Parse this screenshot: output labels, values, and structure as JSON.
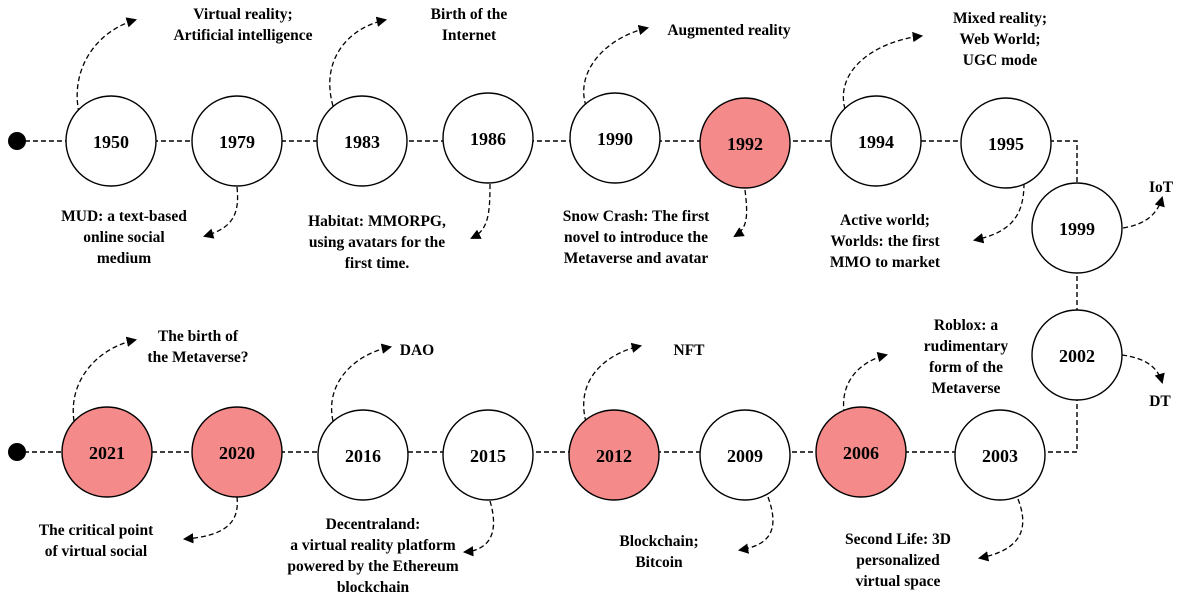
{
  "colors": {
    "highlight_fill": "#f48a8a",
    "default_fill": "#ffffff",
    "stroke": "#000000"
  },
  "nodes": [
    {
      "year": "1950",
      "highlight": false
    },
    {
      "year": "1979",
      "highlight": false
    },
    {
      "year": "1983",
      "highlight": false
    },
    {
      "year": "1986",
      "highlight": false
    },
    {
      "year": "1990",
      "highlight": false
    },
    {
      "year": "1992",
      "highlight": true
    },
    {
      "year": "1994",
      "highlight": false
    },
    {
      "year": "1995",
      "highlight": false
    },
    {
      "year": "1999",
      "highlight": false
    },
    {
      "year": "2002",
      "highlight": false
    },
    {
      "year": "2003",
      "highlight": false
    },
    {
      "year": "2006",
      "highlight": true
    },
    {
      "year": "2009",
      "highlight": false
    },
    {
      "year": "2012",
      "highlight": true
    },
    {
      "year": "2015",
      "highlight": false
    },
    {
      "year": "2016",
      "highlight": false
    },
    {
      "year": "2020",
      "highlight": true
    },
    {
      "year": "2021",
      "highlight": true
    }
  ],
  "annotations": [
    {
      "year": "1950",
      "lines": [
        "Virtual reality;",
        "Artificial intelligence"
      ]
    },
    {
      "year": "1979",
      "lines": [
        "MUD: a text-based",
        "online social",
        "medium"
      ]
    },
    {
      "year": "1983",
      "lines": [
        "Birth of the",
        "Internet"
      ]
    },
    {
      "year": "1986",
      "lines": [
        "Habitat: MMORPG,",
        "using avatars for the",
        "first time."
      ]
    },
    {
      "year": "1990",
      "lines": [
        "Augmented reality"
      ]
    },
    {
      "year": "1992",
      "lines": [
        "Snow Crash: The first",
        "novel to introduce the",
        "Metaverse and avatar"
      ]
    },
    {
      "year": "1994",
      "lines": [
        "Mixed reality;",
        "Web World;",
        "UGC mode"
      ]
    },
    {
      "year": "1995",
      "lines": [
        "Active world;",
        "Worlds: the first",
        "MMO to market"
      ]
    },
    {
      "year": "1999",
      "lines": [
        "IoT"
      ]
    },
    {
      "year": "2002",
      "lines": [
        "DT"
      ]
    },
    {
      "year": "2003",
      "lines": [
        "Second Life: 3D",
        "personalized",
        "virtual space"
      ]
    },
    {
      "year": "2006",
      "lines": [
        "Roblox: a",
        "rudimentary",
        "form of the",
        "Metaverse"
      ]
    },
    {
      "year": "2009",
      "lines": [
        "Blockchain;",
        "Bitcoin"
      ]
    },
    {
      "year": "2012",
      "lines": [
        "NFT"
      ]
    },
    {
      "year": "2016",
      "lines": [
        "DAO"
      ]
    },
    {
      "year": "2015",
      "lines": [
        "Decentraland:",
        "a virtual reality platform",
        "powered by the Ethereum",
        "blockchain"
      ]
    },
    {
      "year": "2021",
      "lines": [
        "The birth of",
        "the Metaverse?"
      ]
    },
    {
      "year": "2020",
      "lines": [
        "The critical point",
        "of virtual social"
      ]
    }
  ]
}
